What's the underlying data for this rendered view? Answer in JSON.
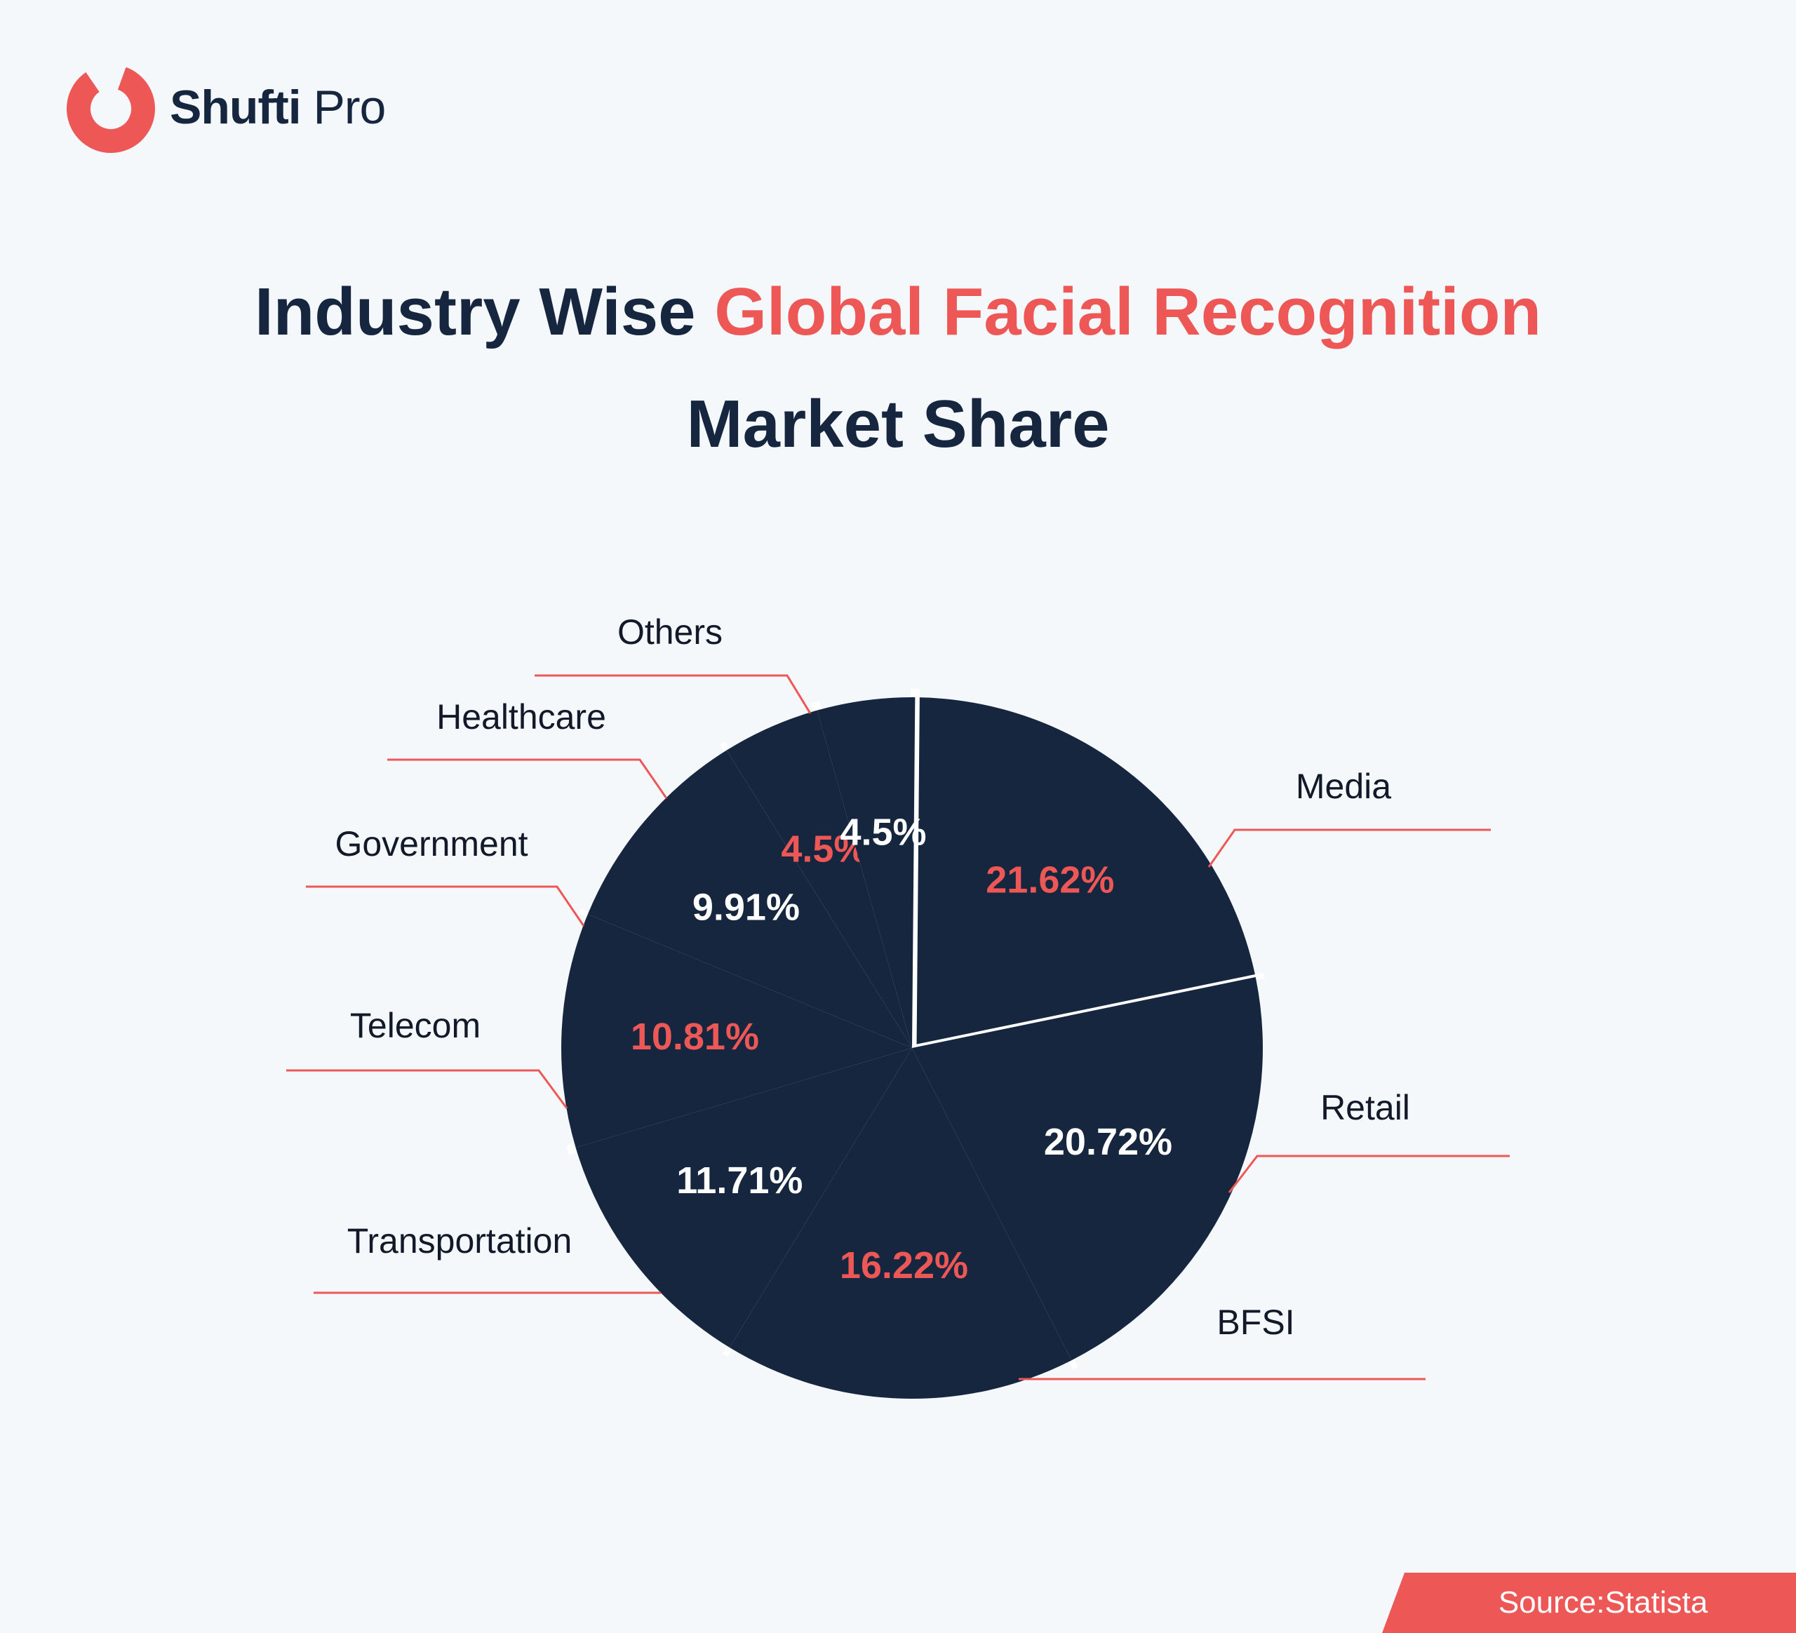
{
  "brand": {
    "name_bold": "Shufti",
    "name_light": "Pro",
    "logo_icon": "shufti-pro-logo-icon",
    "color": "#ed5756"
  },
  "title": {
    "line1_dark": "Industry Wise",
    "line1_accent": "Global Facial Recognition",
    "line2": "Market Share"
  },
  "colors": {
    "background": "#f5f8fb",
    "pie": "#16263f",
    "accent": "#ed5756",
    "text_dark": "#16263f",
    "white": "#ffffff"
  },
  "chart_data": {
    "type": "pie",
    "categories": [
      "Media",
      "Retail",
      "BFSI",
      "Transportation",
      "Telecom",
      "Government",
      "Healthcare",
      "Others"
    ],
    "values": [
      21.62,
      20.72,
      16.22,
      11.71,
      10.81,
      9.91,
      4.5,
      4.5
    ],
    "value_labels": [
      "21.62%",
      "20.72%",
      "16.22%",
      "11.71%",
      "10.81%",
      "9.91%",
      "4.5%",
      "4.5%"
    ],
    "label_colors": [
      "#ed5756",
      "#ffffff",
      "#ed5756",
      "#ffffff",
      "#ed5756",
      "#ffffff",
      "#ed5756",
      "#ffffff"
    ],
    "slice_color": "#16263f",
    "legend": "none"
  },
  "source": {
    "text": "Source:Statista"
  }
}
